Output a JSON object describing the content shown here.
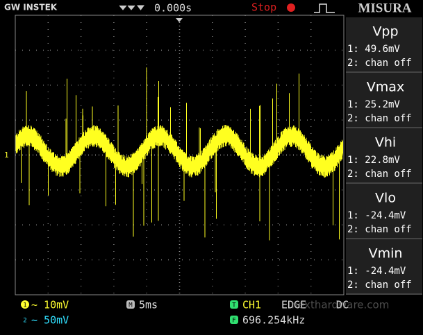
{
  "header": {
    "brand": "GW INSTEK",
    "trigger_time": "0.000s",
    "status": "Stop",
    "label": "MISURA"
  },
  "measurements": [
    {
      "name": "Vpp",
      "ch1": "1: 49.6mV",
      "ch2": "2: chan off"
    },
    {
      "name": "Vmax",
      "ch1": "1: 25.2mV",
      "ch2": "2: chan off"
    },
    {
      "name": "Vhi",
      "ch1": "1: 22.8mV",
      "ch2": "2: chan off"
    },
    {
      "name": "Vlo",
      "ch1": "1: -24.4mV",
      "ch2": "2: chan off"
    },
    {
      "name": "Vmin",
      "ch1": "1: -24.4mV",
      "ch2": "2: chan off"
    }
  ],
  "screen": {
    "channel_marker": "1"
  },
  "footer": {
    "ch1_icon": "1",
    "ch1_scale": "~ 10mV",
    "ch2_icon": "2",
    "ch2_scale": "~ 50mV",
    "timebase_icon": "M",
    "timebase": "5ms",
    "trigger_icon": "T",
    "trigger_source": "CH1",
    "trigger_type": "EDGE",
    "coupling": "DC",
    "frequency_icon": "F",
    "frequency": "696.254kHz"
  },
  "watermark": "nexthardware.com"
}
